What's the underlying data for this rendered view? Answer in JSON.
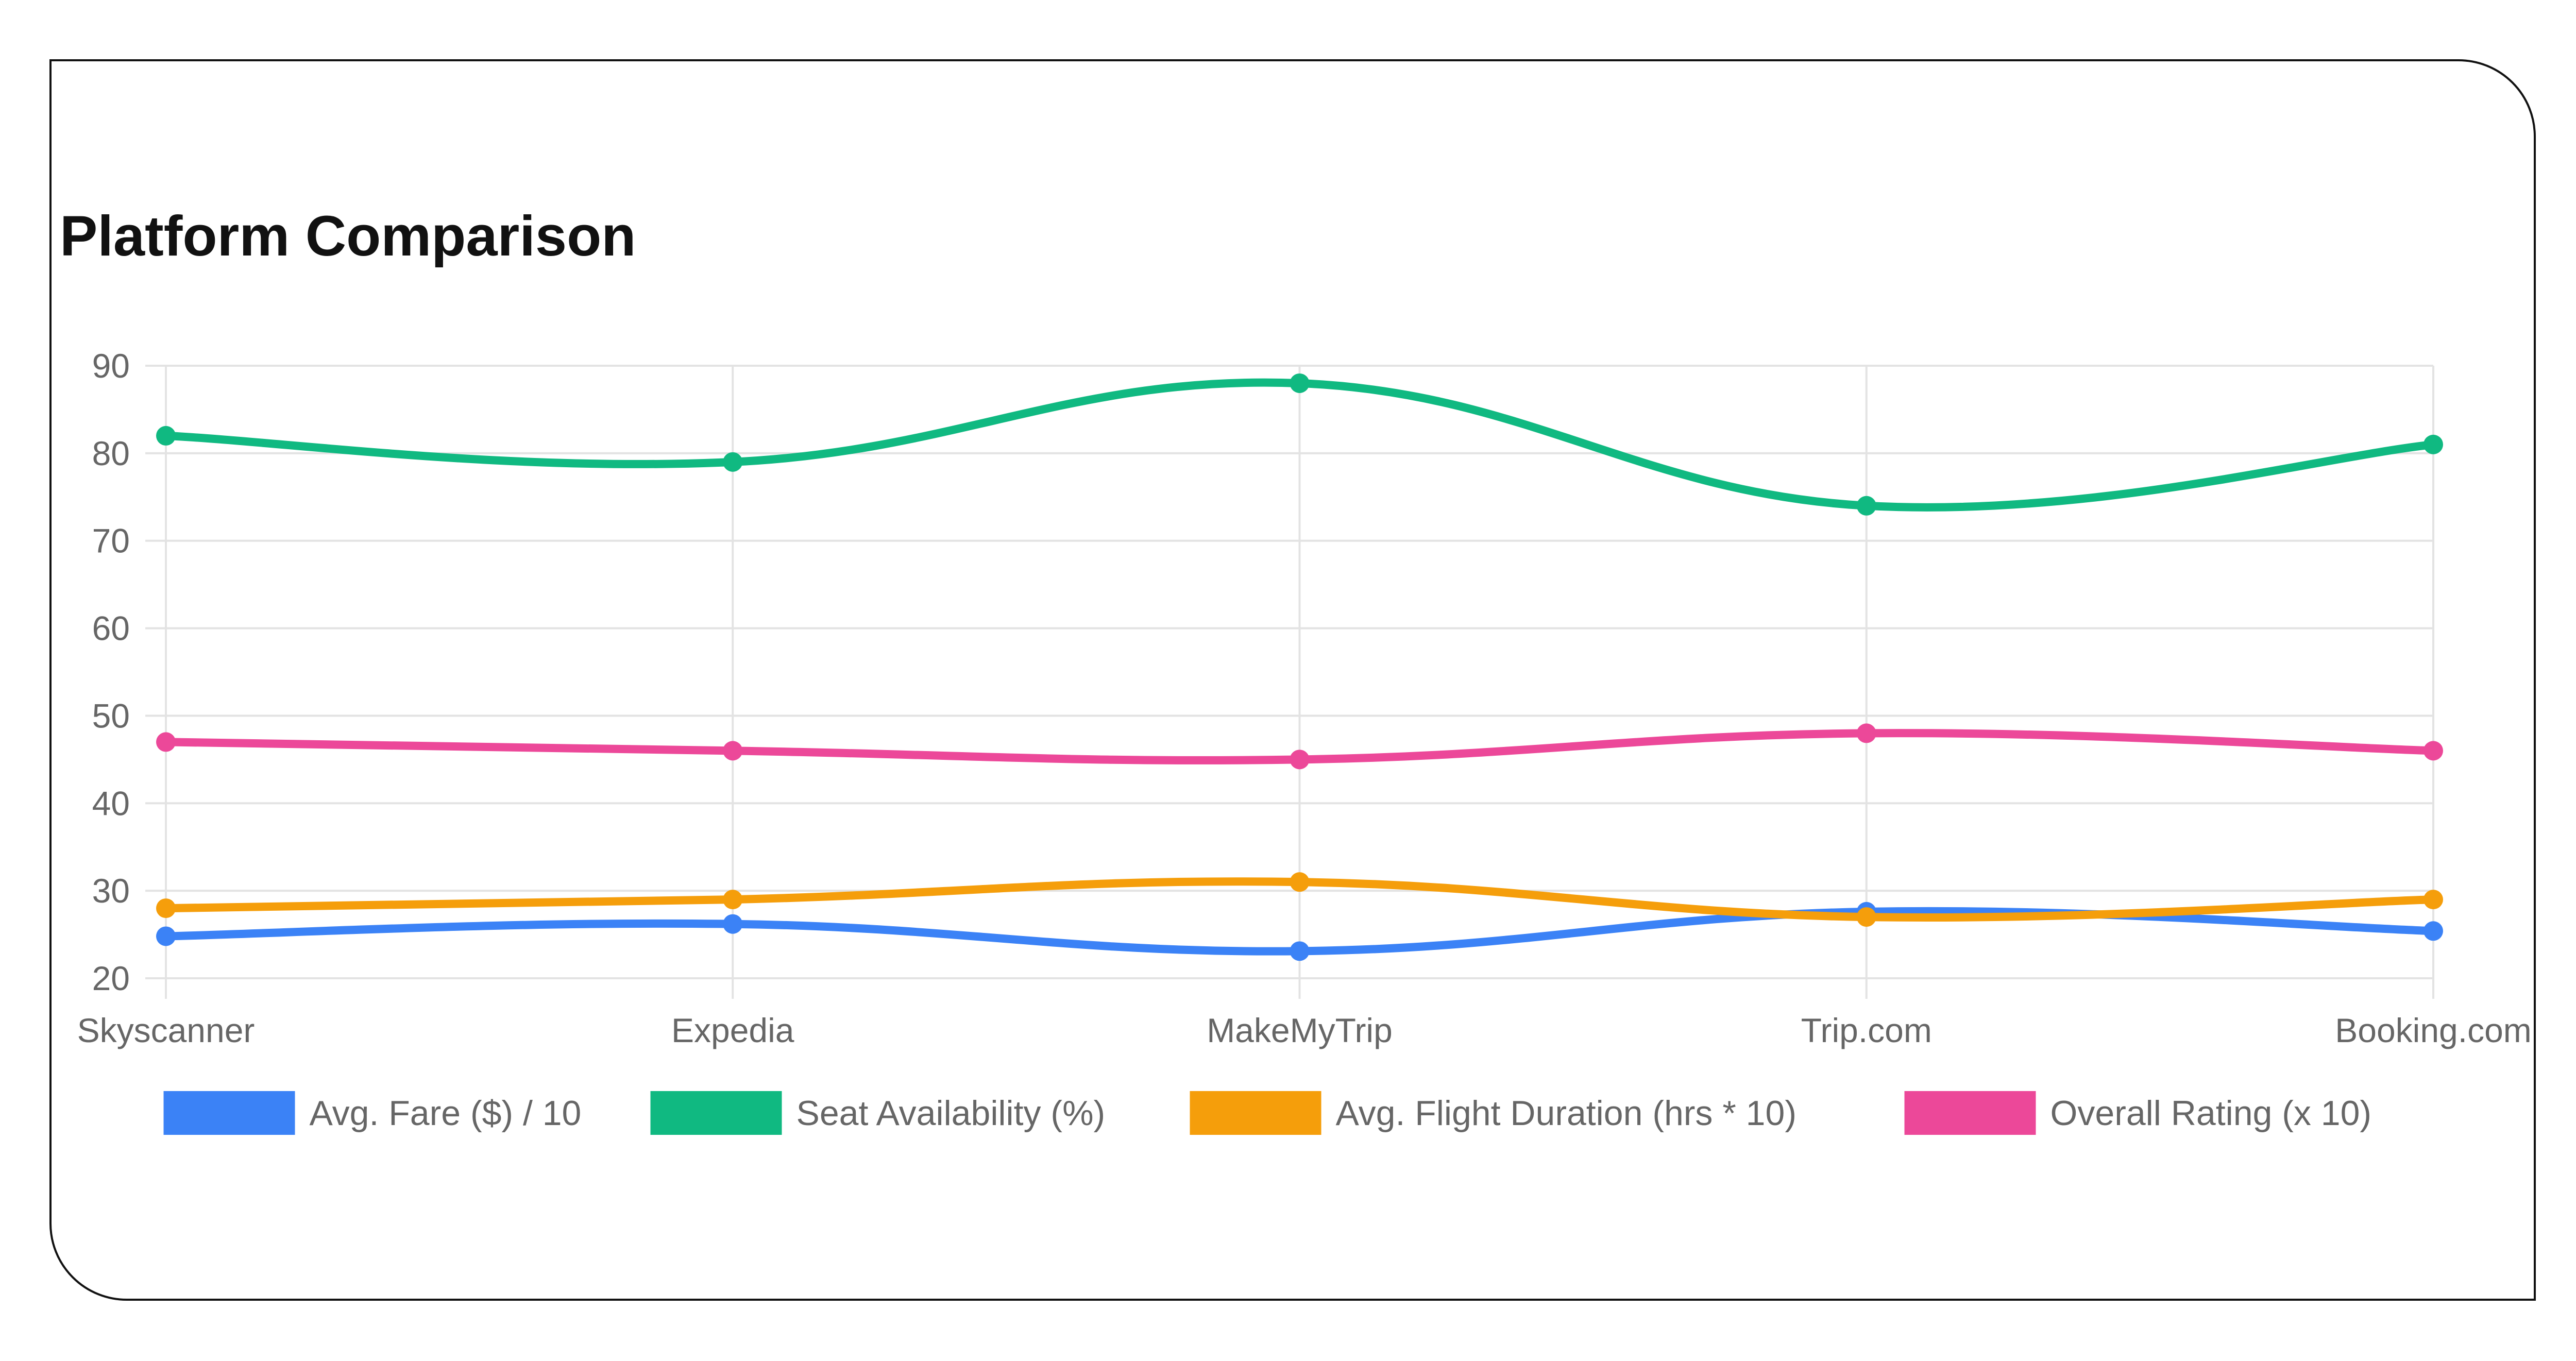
{
  "chart_data": {
    "type": "line",
    "title": "Platform Comparison",
    "xlabel": "",
    "ylabel": "",
    "categories": [
      "Skyscanner",
      "Expedia",
      "MakeMyTrip",
      "Trip.com",
      "Booking.com"
    ],
    "ylim": [
      20,
      90
    ],
    "yticks": [
      20,
      30,
      40,
      50,
      60,
      70,
      80,
      90
    ],
    "grid": true,
    "legend": "bottom",
    "series": [
      {
        "name": "Avg. Fare ($) / 10",
        "color": "#3b82f6",
        "values": [
          24.8,
          26.2,
          23.1,
          27.6,
          25.4
        ]
      },
      {
        "name": "Seat Availability (%)",
        "color": "#10b981",
        "values": [
          82,
          79,
          88,
          74,
          81
        ]
      },
      {
        "name": "Avg. Flight Duration (hrs * 10)",
        "color": "#f59e0b",
        "values": [
          28,
          29,
          31,
          27,
          29
        ]
      },
      {
        "name": "Overall Rating (x 10)",
        "color": "#ec4899",
        "values": [
          47,
          46,
          45,
          48,
          46
        ]
      }
    ]
  }
}
